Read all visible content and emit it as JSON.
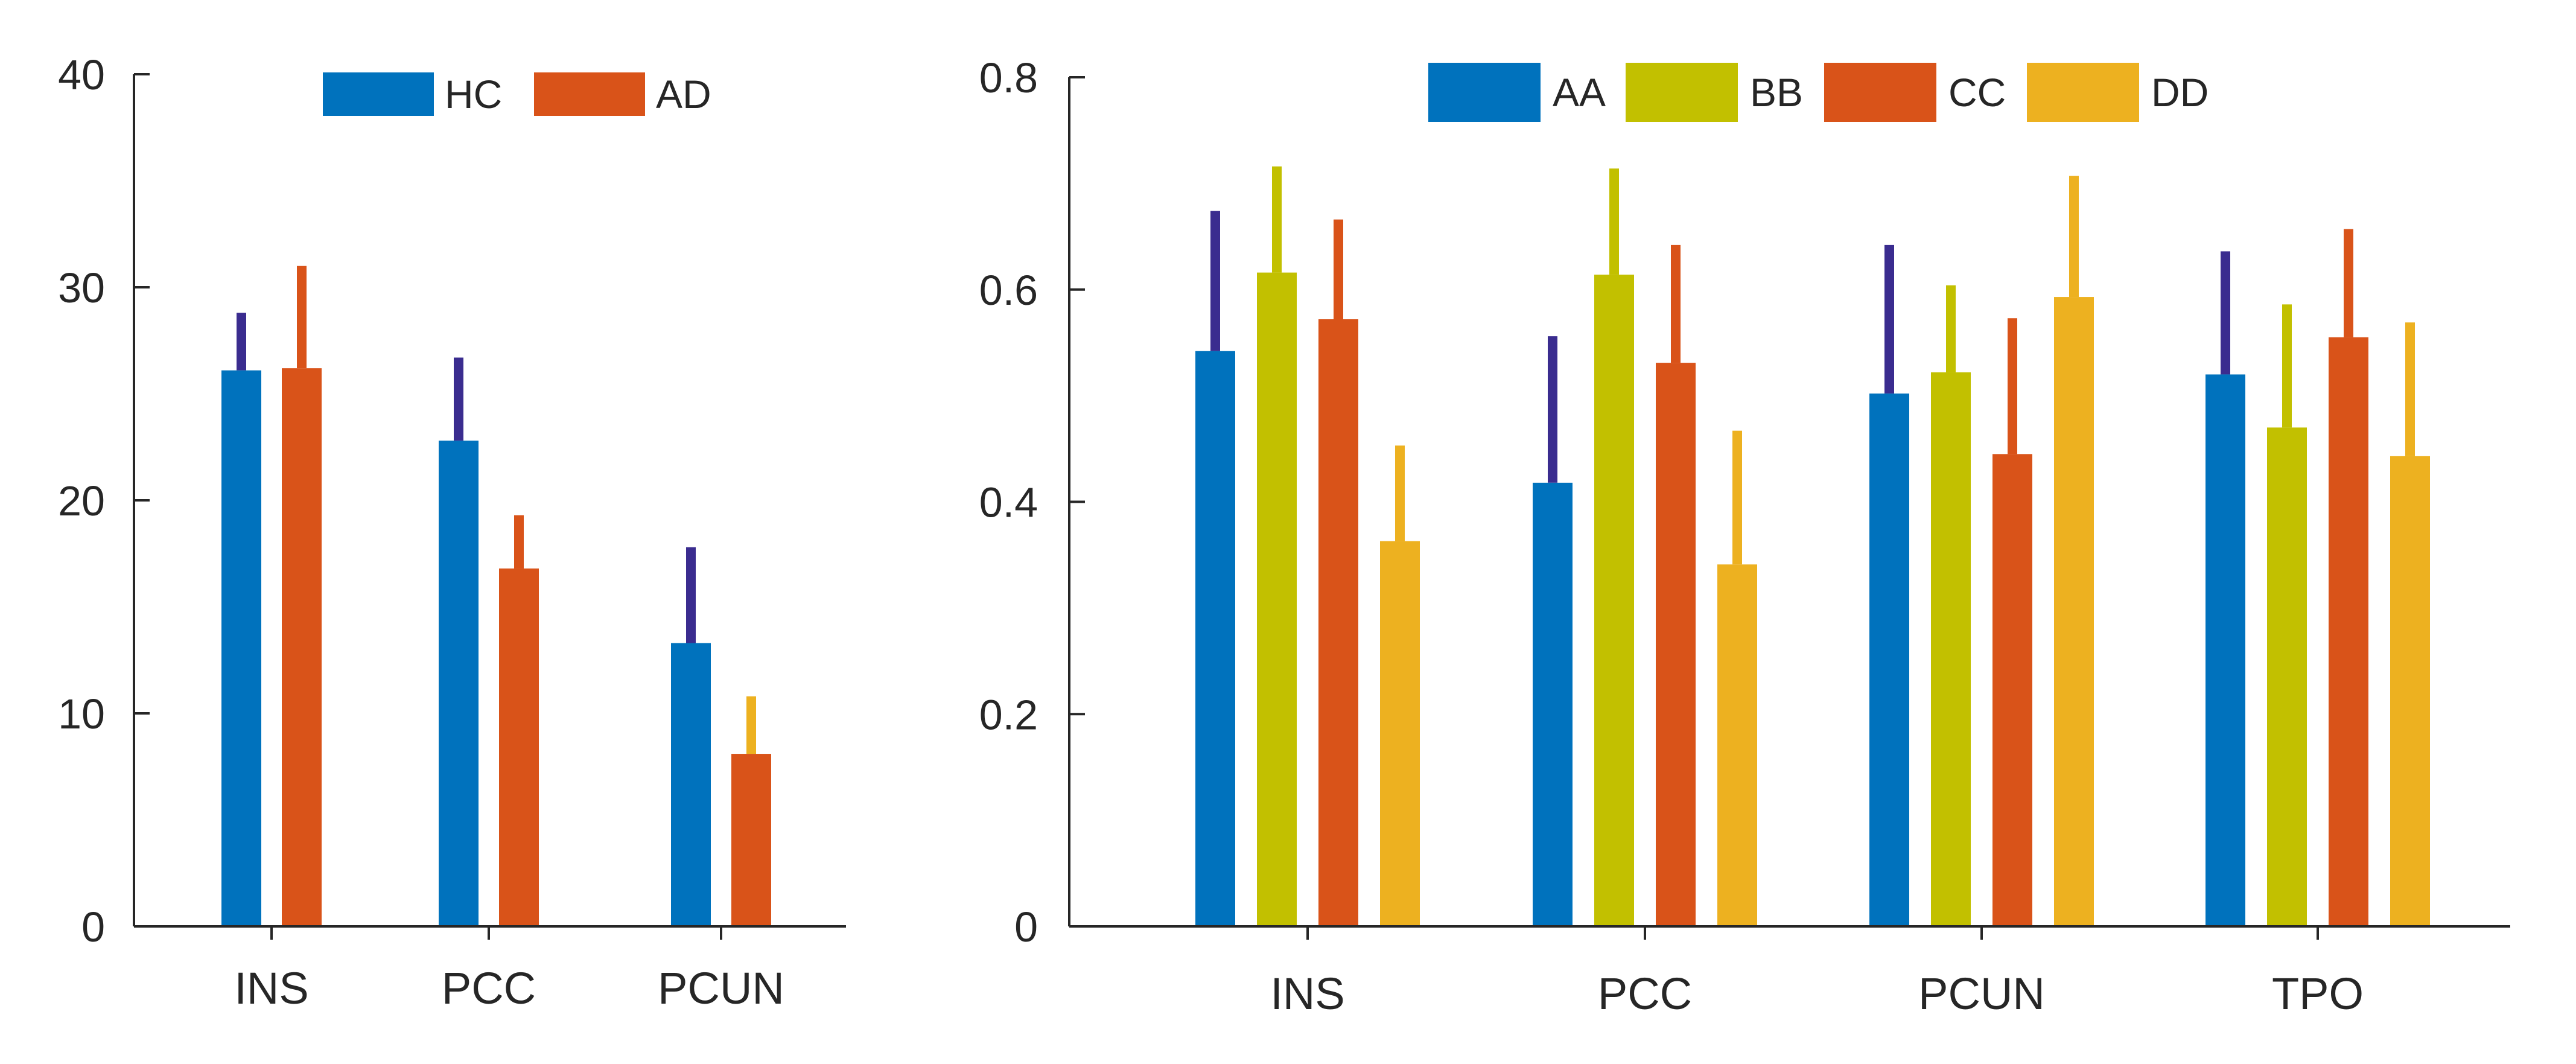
{
  "chart_data": [
    {
      "type": "bar",
      "categories": [
        "INS",
        "PCC",
        "PCUN"
      ],
      "ylim": [
        0,
        40
      ],
      "yticks": [
        0,
        10,
        20,
        30,
        40
      ],
      "grid": false,
      "legend": "top",
      "series": [
        {
          "name": "HC",
          "color": "#0072BD",
          "values": [
            26.1,
            22.8,
            13.3
          ],
          "errors": [
            2.7,
            3.9,
            4.5
          ],
          "error_colors": [
            "#3A2C8F",
            "#3A2C8F",
            "#3A2C8F"
          ]
        },
        {
          "name": "AD",
          "color": "#D95319",
          "values": [
            26.2,
            16.8,
            8.1
          ],
          "errors": [
            4.8,
            2.5,
            2.7
          ],
          "error_colors": [
            "#D95319",
            "#D95319",
            "#EDB120"
          ]
        }
      ]
    },
    {
      "type": "bar",
      "categories": [
        "INS",
        "PCC",
        "PCUN",
        "TPO"
      ],
      "ylim": [
        0,
        0.8
      ],
      "yticks": [
        0,
        0.2,
        0.4,
        0.6,
        0.8
      ],
      "ytick_labels": [
        "0",
        "0.2",
        "0.4",
        "0.6",
        "0.8"
      ],
      "grid": false,
      "legend": "top",
      "series": [
        {
          "name": "AA",
          "color": "#0072BD",
          "values": [
            0.542,
            0.418,
            0.502,
            0.52
          ],
          "errors": [
            0.132,
            0.138,
            0.14,
            0.116
          ],
          "error_colors": [
            "#3A2C8F",
            "#3A2C8F",
            "#3A2C8F",
            "#3A2C8F"
          ]
        },
        {
          "name": "BB",
          "color": "#C2C000",
          "values": [
            0.616,
            0.614,
            0.522,
            0.47
          ],
          "errors": [
            0.1,
            0.1,
            0.082,
            0.116
          ],
          "error_colors": [
            "#C2C000",
            "#C2C000",
            "#C2C000",
            "#C2C000"
          ]
        },
        {
          "name": "CC",
          "color": "#D95319",
          "values": [
            0.572,
            0.531,
            0.445,
            0.555
          ],
          "errors": [
            0.094,
            0.111,
            0.128,
            0.102
          ],
          "error_colors": [
            "#D95319",
            "#D95319",
            "#D95319",
            "#D95319"
          ]
        },
        {
          "name": "DD",
          "color": "#EDB120",
          "values": [
            0.363,
            0.341,
            0.593,
            0.443
          ],
          "errors": [
            0.09,
            0.126,
            0.114,
            0.126
          ],
          "error_colors": [
            "#EDB120",
            "#EDB120",
            "#EDB120",
            "#EDB120"
          ]
        }
      ]
    }
  ]
}
